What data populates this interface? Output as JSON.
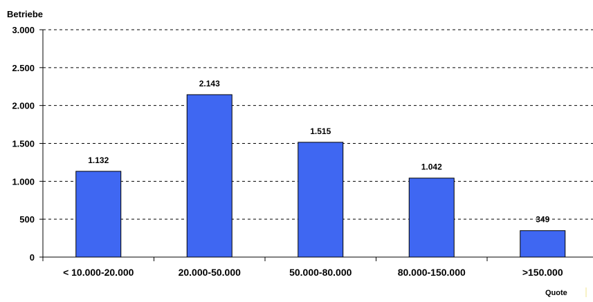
{
  "chart_data": {
    "type": "bar",
    "ylabel": "Betriebe",
    "xlabel": "Quote",
    "categories": [
      "< 10.000-20.000",
      "20.000-50.000",
      "50.000-80.000",
      "80.000-150.000",
      ">150.000"
    ],
    "values": [
      1132,
      2143,
      1515,
      1042,
      349
    ],
    "value_labels": [
      "1.132",
      "2.143",
      "1.515",
      "1.042",
      "349"
    ],
    "y_ticks": [
      0,
      500,
      1000,
      1500,
      2000,
      2500,
      3000
    ],
    "y_tick_labels": [
      "0",
      "500",
      "1.000",
      "1.500",
      "2.000",
      "2.500",
      "3.000"
    ],
    "ylim": [
      0,
      3000
    ],
    "grid": true,
    "grid_style": "dashed",
    "legend": "none",
    "colors": {
      "bar": "#3f67f2",
      "bar_stroke": "#000000",
      "axis": "#000000",
      "grid": "#000000"
    }
  }
}
